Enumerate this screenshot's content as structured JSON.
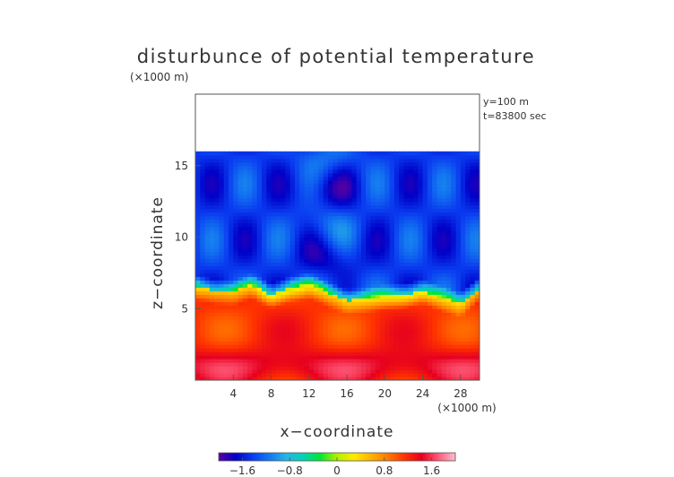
{
  "chart_data": {
    "type": "heatmap",
    "title": "disturbunce of potential temperature",
    "unit_note": "(×1000 m)",
    "annotations": [
      "y=100 m",
      "t=83800 sec"
    ],
    "xlabel": "x−coordinate",
    "xunit": "(×1000 m)",
    "ylabel": "z−coordinate",
    "xlim": [
      0,
      30
    ],
    "ylim": [
      0,
      20
    ],
    "xticks": [
      4,
      8,
      12,
      16,
      20,
      24,
      28
    ],
    "yticks": [
      5,
      10,
      15
    ],
    "colorbar": {
      "range": [
        -2.0,
        2.0
      ],
      "ticks": [
        -1.6,
        -0.8,
        0,
        0.8,
        1.6
      ],
      "tick_labels": [
        "−1.6",
        "−0.8",
        "0",
        "0.8",
        "1.6"
      ],
      "colors": [
        "#5a00a0",
        "#0000c8",
        "#0a3cf0",
        "#1478f0",
        "#28b4e6",
        "#00d2b4",
        "#00e632",
        "#b4f000",
        "#ffeb00",
        "#ffb400",
        "#ff7800",
        "#ff3200",
        "#e6001e",
        "#ff5a78",
        "#ffbed2"
      ]
    },
    "fields": {
      "top_of_field_z": 16.1,
      "upper_layer_value": -1.45,
      "lower_layer_value": 1.15,
      "interface_z_at_x": {
        "x": [
          0,
          2,
          4,
          6,
          8,
          10,
          12,
          14,
          16,
          18,
          20,
          22,
          24,
          26,
          28,
          30
        ],
        "z": [
          6.6,
          6.3,
          6.2,
          6.7,
          6.0,
          6.5,
          6.7,
          6.1,
          5.6,
          5.7,
          5.9,
          6.0,
          6.3,
          5.8,
          5.4,
          6.5
        ]
      }
    }
  }
}
